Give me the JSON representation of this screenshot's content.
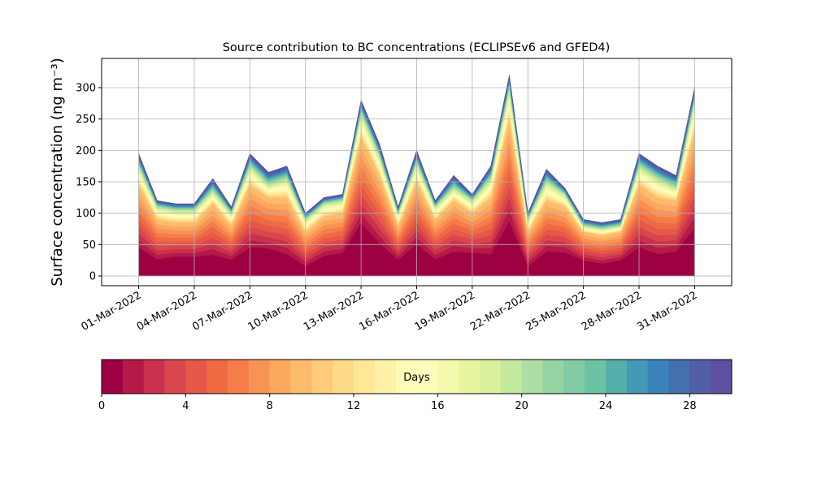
{
  "chart_data": {
    "type": "stacked_area",
    "title": "Source contribution to BC concentrations (ECLIPSEv6 and GFED4)",
    "y_label": "Surface concentration (ng m⁻³)",
    "x": [
      "2022-03-01",
      "2022-03-02",
      "2022-03-03",
      "2022-03-04",
      "2022-03-05",
      "2022-03-06",
      "2022-03-07",
      "2022-03-08",
      "2022-03-09",
      "2022-03-10",
      "2022-03-11",
      "2022-03-12",
      "2022-03-13",
      "2022-03-14",
      "2022-03-15",
      "2022-03-16",
      "2022-03-17",
      "2022-03-18",
      "2022-03-19",
      "2022-03-20",
      "2022-03-21",
      "2022-03-22",
      "2022-03-23",
      "2022-03-24",
      "2022-03-25",
      "2022-03-26",
      "2022-03-27",
      "2022-03-28",
      "2022-03-29",
      "2022-03-30",
      "2022-03-31"
    ],
    "xlim": [
      "2022-02-27",
      "2022-04-02"
    ],
    "xticks": [
      {
        "value": "2022-03-01",
        "label": "01-Mar-2022"
      },
      {
        "value": "2022-03-04",
        "label": "04-Mar-2022"
      },
      {
        "value": "2022-03-07",
        "label": "07-Mar-2022"
      },
      {
        "value": "2022-03-10",
        "label": "10-Mar-2022"
      },
      {
        "value": "2022-03-13",
        "label": "13-Mar-2022"
      },
      {
        "value": "2022-03-16",
        "label": "16-Mar-2022"
      },
      {
        "value": "2022-03-19",
        "label": "19-Mar-2022"
      },
      {
        "value": "2022-03-22",
        "label": "22-Mar-2022"
      },
      {
        "value": "2022-03-25",
        "label": "25-Mar-2022"
      },
      {
        "value": "2022-03-28",
        "label": "28-Mar-2022"
      },
      {
        "value": "2022-03-31",
        "label": "31-Mar-2022"
      }
    ],
    "ylim": [
      -15.5,
      346.5
    ],
    "yticks": [
      0,
      50,
      100,
      150,
      200,
      250,
      300
    ],
    "grid": true,
    "series": [
      {
        "color": "#9e0142",
        "values": [
          46,
          27,
          31,
          31,
          34,
          26,
          46,
          44,
          35,
          16,
          32,
          37,
          85,
          52,
          26,
          51,
          27,
          39,
          37,
          35,
          88,
          16,
          39,
          38,
          25,
          20,
          25,
          46,
          35,
          39,
          77
        ]
      },
      {
        "color": "#b41947",
        "values": [
          11,
          7,
          6,
          6,
          9,
          6,
          11,
          9,
          10,
          6,
          7,
          7,
          15,
          12,
          6,
          11,
          7,
          9,
          7,
          10,
          18,
          6,
          9,
          8,
          5,
          5,
          5,
          11,
          10,
          9,
          17
        ]
      },
      {
        "color": "#c9314c",
        "values": [
          11,
          7,
          6,
          6,
          9,
          6,
          11,
          9,
          10,
          6,
          7,
          7,
          15,
          12,
          6,
          11,
          7,
          9,
          7,
          10,
          18,
          6,
          9,
          8,
          5,
          5,
          5,
          11,
          10,
          9,
          17
        ]
      },
      {
        "color": "#da464d",
        "values": [
          11,
          7,
          6,
          6,
          9,
          6,
          11,
          9,
          10,
          6,
          7,
          7,
          15,
          12,
          6,
          11,
          7,
          9,
          7,
          10,
          18,
          6,
          9,
          8,
          5,
          5,
          5,
          11,
          10,
          9,
          17
        ]
      },
      {
        "color": "#e65848",
        "values": [
          11,
          7,
          6,
          6,
          9,
          6,
          11,
          9,
          10,
          6,
          7,
          7,
          15,
          12,
          6,
          11,
          7,
          9,
          7,
          10,
          18,
          6,
          9,
          8,
          5,
          5,
          5,
          11,
          10,
          9,
          17
        ]
      },
      {
        "color": "#ee6a43",
        "values": [
          11,
          7,
          6,
          6,
          9,
          6,
          11,
          9,
          10,
          6,
          7,
          7,
          15,
          12,
          6,
          11,
          7,
          9,
          7,
          10,
          18,
          6,
          9,
          8,
          5,
          5,
          5,
          11,
          10,
          9,
          17
        ]
      },
      {
        "color": "#f57d4a",
        "values": [
          11,
          7,
          6,
          6,
          9,
          6,
          11,
          9,
          10,
          6,
          7,
          7,
          15,
          12,
          6,
          11,
          7,
          9,
          7,
          10,
          18,
          6,
          9,
          8,
          5,
          5,
          5,
          11,
          10,
          9,
          17
        ]
      },
      {
        "color": "#f99355",
        "values": [
          11,
          7,
          6,
          6,
          9,
          6,
          11,
          9,
          10,
          6,
          7,
          7,
          15,
          12,
          6,
          11,
          7,
          9,
          7,
          10,
          18,
          6,
          9,
          8,
          5,
          5,
          5,
          11,
          10,
          9,
          17
        ]
      },
      {
        "color": "#fca85e",
        "values": [
          11,
          7,
          6,
          6,
          9,
          6,
          11,
          9,
          10,
          6,
          7,
          7,
          15,
          12,
          6,
          11,
          7,
          9,
          7,
          10,
          18,
          6,
          9,
          8,
          5,
          5,
          5,
          11,
          10,
          9,
          17
        ]
      },
      {
        "color": "#fdbb6c",
        "values": [
          11,
          7,
          6,
          6,
          9,
          6,
          11,
          9,
          10,
          6,
          7,
          7,
          15,
          12,
          6,
          11,
          7,
          9,
          7,
          10,
          18,
          6,
          9,
          8,
          5,
          5,
          5,
          11,
          10,
          9,
          17
        ]
      },
      {
        "color": "#fecc7b",
        "values": [
          3,
          2,
          2,
          2,
          2,
          2,
          3,
          2,
          3,
          2,
          2,
          2,
          4,
          3,
          2,
          3,
          2,
          2,
          2,
          3,
          5,
          2,
          3,
          2,
          1,
          1,
          1,
          3,
          3,
          2,
          5
        ]
      },
      {
        "color": "#fedb88",
        "values": [
          3,
          2,
          2,
          2,
          2,
          2,
          3,
          2,
          3,
          2,
          2,
          2,
          4,
          3,
          2,
          3,
          2,
          2,
          2,
          3,
          5,
          2,
          3,
          2,
          1,
          1,
          1,
          3,
          3,
          2,
          5
        ]
      },
      {
        "color": "#fee796",
        "values": [
          3,
          2,
          2,
          2,
          2,
          2,
          3,
          2,
          3,
          2,
          2,
          2,
          4,
          3,
          2,
          3,
          2,
          2,
          2,
          3,
          5,
          2,
          3,
          2,
          1,
          1,
          1,
          3,
          3,
          2,
          5
        ]
      },
      {
        "color": "#fff2a8",
        "values": [
          3,
          2,
          2,
          2,
          2,
          2,
          3,
          2,
          3,
          2,
          2,
          2,
          4,
          3,
          2,
          3,
          2,
          2,
          2,
          3,
          5,
          2,
          3,
          2,
          1,
          1,
          1,
          3,
          3,
          2,
          5
        ]
      },
      {
        "color": "#fffbb8",
        "values": [
          3,
          2,
          2,
          2,
          2,
          2,
          3,
          2,
          3,
          2,
          2,
          2,
          4,
          3,
          2,
          3,
          2,
          2,
          2,
          3,
          5,
          2,
          3,
          2,
          1,
          1,
          1,
          3,
          3,
          2,
          5
        ]
      },
      {
        "color": "#fbfdba",
        "values": [
          3,
          2,
          2,
          2,
          2,
          2,
          3,
          2,
          3,
          2,
          2,
          2,
          4,
          3,
          2,
          3,
          2,
          2,
          2,
          3,
          5,
          2,
          3,
          2,
          1,
          1,
          1,
          3,
          3,
          2,
          5
        ]
      },
      {
        "color": "#f3faad",
        "values": [
          3,
          2,
          2,
          2,
          2,
          2,
          3,
          2,
          3,
          2,
          2,
          2,
          4,
          3,
          2,
          3,
          2,
          2,
          2,
          3,
          5,
          2,
          3,
          2,
          1,
          1,
          1,
          3,
          3,
          2,
          5
        ]
      },
      {
        "color": "#e8f59f",
        "values": [
          3,
          2,
          2,
          2,
          2,
          2,
          3,
          2,
          3,
          2,
          2,
          2,
          4,
          3,
          2,
          3,
          2,
          2,
          2,
          3,
          5,
          2,
          3,
          2,
          1,
          1,
          1,
          3,
          3,
          2,
          5
        ]
      },
      {
        "color": "#d8ef9b",
        "values": [
          3,
          2,
          2,
          2,
          2,
          2,
          3,
          2,
          3,
          2,
          2,
          2,
          4,
          3,
          2,
          3,
          2,
          2,
          2,
          3,
          5,
          2,
          3,
          2,
          1,
          1,
          1,
          3,
          3,
          2,
          5
        ]
      },
      {
        "color": "#c4e79e",
        "values": [
          3,
          2,
          2,
          2,
          2,
          2,
          3,
          2,
          3,
          2,
          2,
          2,
          4,
          3,
          2,
          3,
          2,
          2,
          2,
          3,
          5,
          2,
          3,
          2,
          1,
          1,
          1,
          3,
          3,
          2,
          5
        ]
      },
      {
        "color": "#aedea3",
        "values": [
          2,
          1,
          1,
          1,
          2,
          1,
          2,
          2,
          2,
          1,
          1,
          1,
          2,
          2,
          1,
          2,
          1,
          2,
          1,
          2,
          2,
          1,
          2,
          1,
          1,
          1,
          1,
          2,
          2,
          2,
          2
        ]
      },
      {
        "color": "#96d4a4",
        "values": [
          2,
          1,
          1,
          1,
          2,
          1,
          2,
          2,
          2,
          1,
          1,
          1,
          2,
          2,
          1,
          2,
          1,
          2,
          1,
          2,
          2,
          1,
          2,
          1,
          1,
          1,
          1,
          2,
          2,
          2,
          2
        ]
      },
      {
        "color": "#80cba5",
        "values": [
          2,
          1,
          1,
          1,
          2,
          1,
          2,
          2,
          2,
          1,
          1,
          1,
          2,
          2,
          1,
          2,
          1,
          2,
          1,
          2,
          2,
          1,
          2,
          1,
          1,
          1,
          1,
          2,
          2,
          2,
          2
        ]
      },
      {
        "color": "#6bc2a5",
        "values": [
          2,
          1,
          1,
          1,
          2,
          1,
          2,
          2,
          2,
          1,
          1,
          1,
          2,
          2,
          1,
          2,
          1,
          2,
          1,
          2,
          2,
          1,
          2,
          1,
          1,
          1,
          1,
          2,
          2,
          2,
          2
        ]
      },
      {
        "color": "#55afab",
        "values": [
          2,
          1,
          1,
          1,
          2,
          1,
          2,
          2,
          2,
          1,
          1,
          1,
          2,
          2,
          1,
          2,
          1,
          2,
          1,
          2,
          2,
          1,
          2,
          1,
          1,
          1,
          1,
          2,
          2,
          2,
          2
        ]
      },
      {
        "color": "#4499b4",
        "values": [
          2,
          1,
          1,
          1,
          2,
          1,
          2,
          2,
          2,
          1,
          1,
          1,
          2,
          2,
          1,
          2,
          1,
          2,
          1,
          2,
          2,
          1,
          2,
          1,
          1,
          1,
          1,
          2,
          2,
          2,
          2
        ]
      },
      {
        "color": "#3b84bb",
        "values": [
          2,
          1,
          1,
          1,
          2,
          1,
          2,
          2,
          2,
          1,
          1,
          1,
          2,
          2,
          1,
          2,
          1,
          2,
          1,
          2,
          2,
          1,
          2,
          1,
          1,
          1,
          1,
          2,
          2,
          2,
          2
        ]
      },
      {
        "color": "#4470b0",
        "values": [
          2,
          1,
          1,
          1,
          2,
          1,
          2,
          2,
          2,
          1,
          1,
          1,
          2,
          2,
          1,
          2,
          1,
          2,
          1,
          2,
          2,
          1,
          2,
          1,
          1,
          1,
          1,
          2,
          2,
          2,
          2
        ]
      },
      {
        "color": "#535ea8",
        "values": [
          2,
          1,
          1,
          1,
          2,
          1,
          2,
          2,
          2,
          1,
          1,
          1,
          2,
          2,
          1,
          2,
          1,
          2,
          1,
          2,
          2,
          1,
          2,
          1,
          1,
          1,
          1,
          2,
          2,
          2,
          2
        ]
      },
      {
        "color": "#5e4fa2",
        "values": [
          2,
          1,
          1,
          1,
          2,
          1,
          2,
          2,
          2,
          1,
          1,
          1,
          2,
          2,
          1,
          2,
          1,
          2,
          1,
          2,
          2,
          1,
          2,
          1,
          1,
          1,
          1,
          2,
          2,
          2,
          2
        ]
      }
    ],
    "colorbar": {
      "label": "Days",
      "lim": [
        0,
        30
      ],
      "ticks": [
        0,
        4,
        8,
        12,
        16,
        20,
        24,
        28
      ]
    }
  }
}
